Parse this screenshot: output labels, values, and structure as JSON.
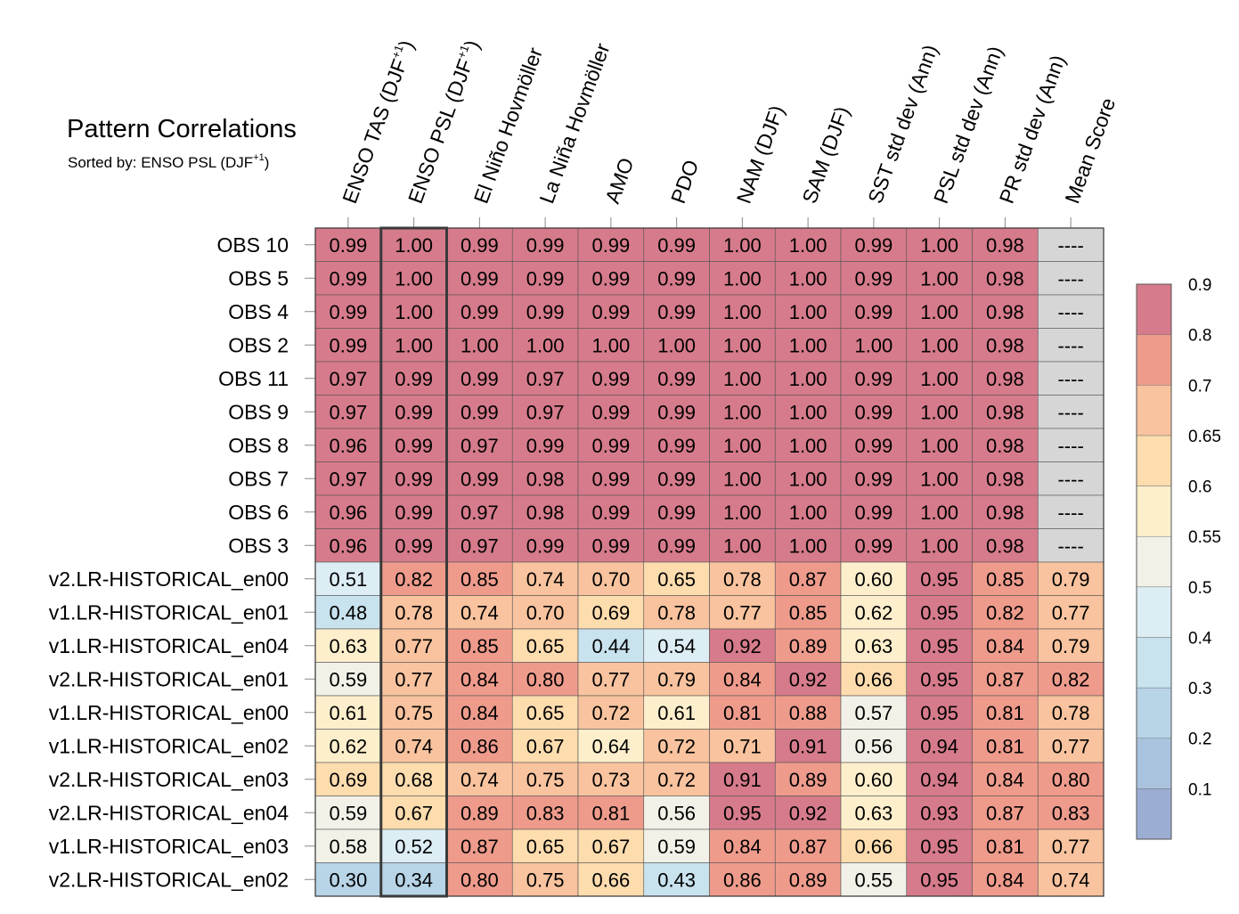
{
  "chart_data": {
    "type": "heatmap",
    "title": "Pattern Correlations",
    "subtitle": "Sorted by: ENSO PSL (DJF",
    "subtitle_sup": "+1",
    "subtitle_end": ")",
    "highlight_column": 1,
    "columns": [
      {
        "label": "ENSO TAS (DJF",
        "sup": "+1",
        "end": ")"
      },
      {
        "label": "ENSO PSL (DJF",
        "sup": "+1",
        "end": ")"
      },
      {
        "label": "El Niño Hovmöller"
      },
      {
        "label": "La Niña Hovmöller"
      },
      {
        "label": "AMO"
      },
      {
        "label": "PDO"
      },
      {
        "label": "NAM (DJF)"
      },
      {
        "label": "SAM (DJF)"
      },
      {
        "label": "SST std dev (Ann)"
      },
      {
        "label": "PSL std dev (Ann)"
      },
      {
        "label": "PR std dev (Ann)"
      },
      {
        "label": "Mean Score"
      }
    ],
    "rows": [
      {
        "name": "OBS 10",
        "values": [
          "0.99",
          "1.00",
          "0.99",
          "0.99",
          "0.99",
          "0.99",
          "1.00",
          "1.00",
          "0.99",
          "1.00",
          "0.98",
          "----"
        ]
      },
      {
        "name": "OBS 5",
        "values": [
          "0.99",
          "1.00",
          "0.99",
          "0.99",
          "0.99",
          "0.99",
          "1.00",
          "1.00",
          "0.99",
          "1.00",
          "0.98",
          "----"
        ]
      },
      {
        "name": "OBS 4",
        "values": [
          "0.99",
          "1.00",
          "0.99",
          "0.99",
          "0.99",
          "0.99",
          "1.00",
          "1.00",
          "0.99",
          "1.00",
          "0.98",
          "----"
        ]
      },
      {
        "name": "OBS 2",
        "values": [
          "0.99",
          "1.00",
          "1.00",
          "1.00",
          "1.00",
          "1.00",
          "1.00",
          "1.00",
          "1.00",
          "1.00",
          "0.98",
          "----"
        ]
      },
      {
        "name": "OBS 11",
        "values": [
          "0.97",
          "0.99",
          "0.99",
          "0.97",
          "0.99",
          "0.99",
          "1.00",
          "1.00",
          "0.99",
          "1.00",
          "0.98",
          "----"
        ]
      },
      {
        "name": "OBS 9",
        "values": [
          "0.97",
          "0.99",
          "0.99",
          "0.97",
          "0.99",
          "0.99",
          "1.00",
          "1.00",
          "0.99",
          "1.00",
          "0.98",
          "----"
        ]
      },
      {
        "name": "OBS 8",
        "values": [
          "0.96",
          "0.99",
          "0.97",
          "0.99",
          "0.99",
          "0.99",
          "1.00",
          "1.00",
          "0.99",
          "1.00",
          "0.98",
          "----"
        ]
      },
      {
        "name": "OBS 7",
        "values": [
          "0.97",
          "0.99",
          "0.99",
          "0.98",
          "0.99",
          "0.99",
          "1.00",
          "1.00",
          "0.99",
          "1.00",
          "0.98",
          "----"
        ]
      },
      {
        "name": "OBS 6",
        "values": [
          "0.96",
          "0.99",
          "0.97",
          "0.98",
          "0.99",
          "0.99",
          "1.00",
          "1.00",
          "0.99",
          "1.00",
          "0.98",
          "----"
        ]
      },
      {
        "name": "OBS 3",
        "values": [
          "0.96",
          "0.99",
          "0.97",
          "0.99",
          "0.99",
          "0.99",
          "1.00",
          "1.00",
          "0.99",
          "1.00",
          "0.98",
          "----"
        ]
      },
      {
        "name": "v2.LR-HISTORICAL_en00",
        "values": [
          "0.51",
          "0.82",
          "0.85",
          "0.74",
          "0.70",
          "0.65",
          "0.78",
          "0.87",
          "0.60",
          "0.95",
          "0.85",
          "0.79"
        ]
      },
      {
        "name": "v1.LR-HISTORICAL_en01",
        "values": [
          "0.48",
          "0.78",
          "0.74",
          "0.70",
          "0.69",
          "0.78",
          "0.77",
          "0.85",
          "0.62",
          "0.95",
          "0.82",
          "0.77"
        ]
      },
      {
        "name": "v1.LR-HISTORICAL_en04",
        "values": [
          "0.63",
          "0.77",
          "0.85",
          "0.65",
          "0.44",
          "0.54",
          "0.92",
          "0.89",
          "0.63",
          "0.95",
          "0.84",
          "0.79"
        ]
      },
      {
        "name": "v2.LR-HISTORICAL_en01",
        "values": [
          "0.59",
          "0.77",
          "0.84",
          "0.80",
          "0.77",
          "0.79",
          "0.84",
          "0.92",
          "0.66",
          "0.95",
          "0.87",
          "0.82"
        ]
      },
      {
        "name": "v1.LR-HISTORICAL_en00",
        "values": [
          "0.61",
          "0.75",
          "0.84",
          "0.65",
          "0.72",
          "0.61",
          "0.81",
          "0.88",
          "0.57",
          "0.95",
          "0.81",
          "0.78"
        ]
      },
      {
        "name": "v1.LR-HISTORICAL_en02",
        "values": [
          "0.62",
          "0.74",
          "0.86",
          "0.67",
          "0.64",
          "0.72",
          "0.71",
          "0.91",
          "0.56",
          "0.94",
          "0.81",
          "0.77"
        ]
      },
      {
        "name": "v2.LR-HISTORICAL_en03",
        "values": [
          "0.69",
          "0.68",
          "0.74",
          "0.75",
          "0.73",
          "0.72",
          "0.91",
          "0.89",
          "0.60",
          "0.94",
          "0.84",
          "0.80"
        ]
      },
      {
        "name": "v2.LR-HISTORICAL_en04",
        "values": [
          "0.59",
          "0.67",
          "0.89",
          "0.83",
          "0.81",
          "0.56",
          "0.95",
          "0.92",
          "0.63",
          "0.93",
          "0.87",
          "0.83"
        ]
      },
      {
        "name": "v1.LR-HISTORICAL_en03",
        "values": [
          "0.58",
          "0.52",
          "0.87",
          "0.65",
          "0.67",
          "0.59",
          "0.84",
          "0.87",
          "0.66",
          "0.95",
          "0.81",
          "0.77"
        ]
      },
      {
        "name": "v2.LR-HISTORICAL_en02",
        "values": [
          "0.30",
          "0.34",
          "0.80",
          "0.75",
          "0.66",
          "0.43",
          "0.86",
          "0.89",
          "0.55",
          "0.95",
          "0.84",
          "0.74"
        ]
      }
    ],
    "missing_color": "#d6d6d6",
    "colorbar": {
      "levels": [
        0.1,
        0.2,
        0.3,
        0.4,
        0.5,
        0.55,
        0.6,
        0.65,
        0.7,
        0.8,
        0.9
      ],
      "tick_labels": [
        "0.1",
        "0.2",
        "0.3",
        "0.4",
        "0.5",
        "0.55",
        "0.6",
        "0.65",
        "0.7",
        "0.8",
        "0.9"
      ],
      "colors": [
        "#9badd2",
        "#a9c3de",
        "#b8d4e7",
        "#c8e2ee",
        "#dcedf4",
        "#f1f1e8",
        "#fdefcc",
        "#fddcae",
        "#f8c39e",
        "#ee9b8c",
        "#d67b8b"
      ]
    }
  }
}
